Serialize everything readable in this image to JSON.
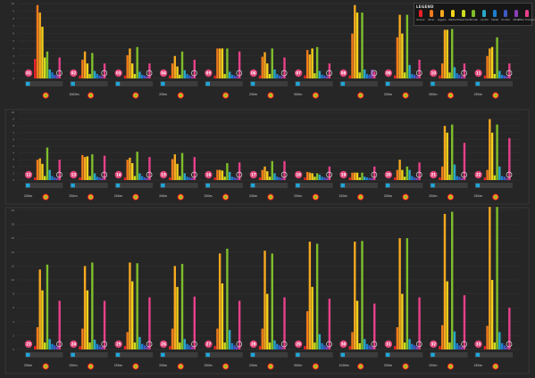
{
  "legend": {
    "title": "LEGEND",
    "items": [
      {
        "label": "Runner",
        "color": "#e8202a",
        "icon": "runner-icon"
      },
      {
        "label": "Pacer",
        "color": "#f07a1c",
        "icon": "person-icon"
      },
      {
        "label": "Joggers",
        "color": "#f7a91e",
        "icon": "person-icon"
      },
      {
        "label": "Walker",
        "color": "#f5d21a",
        "icon": "walker-icon"
      },
      {
        "label": "Wheelchair",
        "color": "#cfdc1e",
        "icon": "wheelchair-icon"
      },
      {
        "label": "Stroller",
        "color": "#7fbf2a",
        "icon": "stroller-icon"
      },
      {
        "label": "Cyclist",
        "color": "#2aa8c8",
        "icon": "cyclist-icon"
      },
      {
        "label": "Skater",
        "color": "#1b7fd0",
        "icon": "skater-icon"
      },
      {
        "label": "Scooter",
        "color": "#3e5ac2",
        "icon": "scooter-icon"
      },
      {
        "label": "Other",
        "color": "#8a3fb8",
        "icon": "other-icon"
      },
      {
        "label": "Other Transport",
        "color": "#e8408a",
        "icon": "transport-icon"
      }
    ]
  },
  "chart_data": {
    "type": "bar",
    "series_colors": [
      "#e8202a",
      "#f07a1c",
      "#f7a91e",
      "#f5d21a",
      "#cfdc1e",
      "#7fbf2a",
      "#2aa8c8",
      "#1b7fd0",
      "#3e5ac2",
      "#8a3fb8",
      "#e8408a"
    ],
    "panels": [
      {
        "row": 1,
        "ylim": [
          0,
          10
        ],
        "groups": [
          {
            "id": "01",
            "distance": "",
            "values": [
              2.6,
              9.8,
              8.8,
              6.9,
              2.8,
              3.6,
              1.2,
              0.8,
              0.5,
              0.4,
              2.8
            ]
          },
          {
            "id": "02",
            "distance": "1000m",
            "values": [
              0.4,
              2.5,
              3.6,
              2.0,
              0.6,
              3.4,
              1.0,
              0.6,
              0.4,
              0.3,
              2.0
            ]
          },
          {
            "id": "03",
            "distance": "",
            "values": [
              0.4,
              3.1,
              4.0,
              2.0,
              0.6,
              4.2,
              0.9,
              0.5,
              0.4,
              0.3,
              2.0
            ]
          },
          {
            "id": "04",
            "distance": "250m",
            "values": [
              0.4,
              2.0,
              3.0,
              1.6,
              0.5,
              3.6,
              1.1,
              0.6,
              0.4,
              0.3,
              2.5
            ]
          },
          {
            "id": "05",
            "distance": "",
            "values": [
              0.4,
              4.0,
              4.0,
              4.0,
              0.6,
              4.0,
              0.9,
              0.5,
              0.4,
              0.3,
              3.6
            ]
          },
          {
            "id": "06",
            "distance": "250m",
            "values": [
              0.4,
              2.9,
              3.5,
              2.0,
              0.6,
              4.0,
              1.2,
              0.6,
              0.4,
              0.3,
              2.8
            ]
          },
          {
            "id": "07",
            "distance": "500m",
            "values": [
              0.4,
              3.8,
              3.2,
              4.0,
              0.7,
              4.2,
              1.0,
              0.5,
              0.4,
              0.3,
              2.0
            ]
          },
          {
            "id": "08",
            "distance": "",
            "values": [
              0.4,
              6.0,
              9.8,
              8.8,
              0.8,
              8.8,
              1.2,
              0.6,
              0.5,
              1.2,
              0.9
            ]
          },
          {
            "id": "09",
            "distance": "250m",
            "values": [
              0.4,
              5.5,
              8.5,
              6.0,
              0.8,
              8.5,
              1.8,
              0.6,
              0.5,
              0.3,
              2.5
            ]
          },
          {
            "id": "10",
            "distance": "500m",
            "values": [
              0.4,
              2.0,
              6.5,
              6.5,
              0.8,
              6.6,
              1.5,
              0.7,
              0.5,
              0.3,
              2.0
            ]
          },
          {
            "id": "11",
            "distance": "250m",
            "values": [
              0.4,
              3.0,
              4.0,
              4.2,
              0.6,
              5.5,
              1.0,
              0.5,
              0.4,
              0.3,
              2.0
            ]
          }
        ]
      },
      {
        "row": 2,
        "ylim": [
          0,
          10
        ],
        "groups": [
          {
            "id": "12",
            "distance": "250m",
            "values": [
              0.4,
              3.0,
              3.2,
              2.4,
              0.6,
              4.8,
              1.5,
              0.6,
              0.4,
              0.3,
              3.0
            ]
          },
          {
            "id": "13",
            "distance": "250m",
            "values": [
              0.4,
              3.7,
              3.4,
              3.5,
              0.6,
              3.8,
              1.0,
              0.5,
              0.4,
              0.3,
              3.6
            ]
          },
          {
            "id": "14",
            "distance": "250m",
            "values": [
              0.4,
              3.0,
              3.3,
              2.5,
              0.6,
              4.2,
              1.0,
              0.6,
              0.4,
              0.3,
              3.4
            ]
          },
          {
            "id": "15",
            "distance": "250m",
            "values": [
              0.4,
              3.1,
              3.8,
              2.4,
              0.6,
              4.0,
              1.0,
              0.5,
              0.4,
              0.3,
              3.4
            ]
          },
          {
            "id": "16",
            "distance": "250m",
            "values": [
              0.4,
              1.5,
              1.5,
              1.4,
              0.5,
              2.5,
              1.2,
              0.5,
              0.4,
              0.3,
              2.6
            ]
          },
          {
            "id": "17",
            "distance": "250m",
            "values": [
              0.4,
              1.5,
              2.0,
              1.3,
              0.5,
              2.8,
              1.0,
              0.5,
              0.4,
              0.3,
              2.8
            ]
          },
          {
            "id": "18",
            "distance": "250m",
            "values": [
              0.4,
              1.2,
              1.1,
              1.0,
              0.5,
              1.0,
              0.8,
              0.5,
              0.4,
              0.3,
              2.0
            ]
          },
          {
            "id": "19",
            "distance": "250m",
            "values": [
              0.4,
              1.1,
              1.1,
              1.1,
              0.4,
              1.1,
              0.5,
              0.4,
              0.3,
              0.3,
              2.0
            ]
          },
          {
            "id": "20",
            "distance": "250m",
            "values": [
              0.4,
              1.5,
              3.0,
              1.5,
              0.5,
              2.0,
              1.5,
              0.6,
              0.4,
              0.3,
              2.6
            ]
          },
          {
            "id": "21",
            "distance": "250m",
            "values": [
              0.4,
              2.0,
              8.0,
              7.0,
              0.8,
              8.2,
              2.3,
              0.6,
              0.5,
              0.3,
              5.5
            ]
          },
          {
            "id": "22",
            "distance": "250m",
            "values": [
              0.4,
              1.5,
              9.0,
              7.0,
              0.7,
              8.2,
              2.0,
              0.6,
              0.5,
              0.3,
              6.2
            ]
          }
        ]
      },
      {
        "row": 3,
        "ylim": [
          0,
          20
        ],
        "groups": [
          {
            "id": "23",
            "distance": "250m",
            "values": [
              0.5,
              3.2,
              11.5,
              8.5,
              1.0,
              12.2,
              1.5,
              0.8,
              0.6,
              0.4,
              7.0
            ]
          },
          {
            "id": "24",
            "distance": "250m",
            "values": [
              0.5,
              3.0,
              12.0,
              8.5,
              1.0,
              12.5,
              1.4,
              0.8,
              0.6,
              0.4,
              7.0
            ]
          },
          {
            "id": "25",
            "distance": "250m",
            "values": [
              0.5,
              2.5,
              12.5,
              9.8,
              1.0,
              12.4,
              1.8,
              0.8,
              0.6,
              0.4,
              7.5
            ]
          },
          {
            "id": "26",
            "distance": "250m",
            "values": [
              0.5,
              3.0,
              12.0,
              9.0,
              1.0,
              12.3,
              1.5,
              0.8,
              0.6,
              0.4,
              7.6
            ]
          },
          {
            "id": "27",
            "distance": "250m",
            "values": [
              0.5,
              3.0,
              13.8,
              9.5,
              1.0,
              14.5,
              2.8,
              0.9,
              0.6,
              0.4,
              7.0
            ]
          },
          {
            "id": "28",
            "distance": "250m",
            "values": [
              0.5,
              3.0,
              14.2,
              8.0,
              1.0,
              13.8,
              1.3,
              0.8,
              0.6,
              0.4,
              7.5
            ]
          },
          {
            "id": "29",
            "distance": "500m",
            "values": [
              0.5,
              5.5,
              15.5,
              9.0,
              1.0,
              15.2,
              2.2,
              0.9,
              0.6,
              0.4,
              7.3
            ]
          },
          {
            "id": "30",
            "distance": "1000m",
            "values": [
              0.5,
              2.5,
              15.5,
              7.0,
              0.9,
              15.6,
              1.5,
              0.8,
              0.6,
              0.4,
              6.6
            ]
          },
          {
            "id": "31",
            "distance": "250m",
            "values": [
              0.5,
              3.2,
              16.0,
              8.0,
              1.0,
              16.0,
              1.5,
              0.8,
              0.6,
              0.4,
              7.5
            ]
          },
          {
            "id": "32",
            "distance": "250m",
            "values": [
              0.5,
              3.5,
              19.5,
              9.8,
              1.0,
              19.8,
              2.6,
              0.9,
              0.6,
              0.4,
              7.8
            ]
          },
          {
            "id": "33",
            "distance": "250m",
            "values": [
              0.5,
              3.4,
              20.5,
              10.0,
              1.0,
              20.5,
              2.5,
              0.9,
              0.6,
              0.4,
              6.0
            ]
          }
        ]
      }
    ]
  }
}
